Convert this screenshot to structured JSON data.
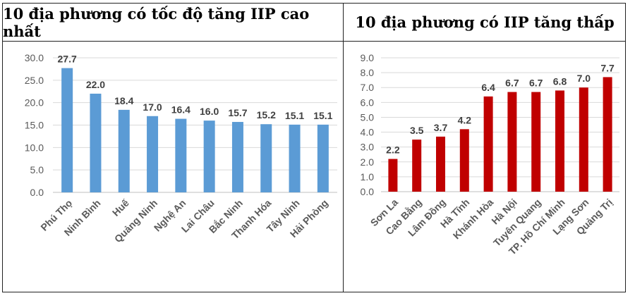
{
  "chart_data": [
    {
      "type": "bar",
      "title": "10 địa phương có tốc độ tăng IIP cao nhất",
      "categories": [
        "Phú Thọ",
        "Ninh Bình",
        "Huế",
        "Quảng Ninh",
        "Nghệ An",
        "Lai Châu",
        "Bắc Ninh",
        "Thanh Hóa",
        "Tây Ninh",
        "Hải Phòng"
      ],
      "values": [
        27.7,
        22.0,
        18.4,
        17.0,
        16.4,
        16.0,
        15.7,
        15.2,
        15.1,
        15.1
      ],
      "value_labels": [
        "27.7",
        "22.0",
        "18.4",
        "17.0",
        "16.4",
        "16.0",
        "15.7",
        "15.2",
        "15.1",
        "15.1"
      ],
      "ylim": [
        0,
        30
      ],
      "yticks": [
        "0.0",
        "5.0",
        "10.0",
        "15.0",
        "20.0",
        "25.0",
        "30.0"
      ],
      "ytick_values": [
        0,
        5,
        10,
        15,
        20,
        25,
        30
      ],
      "grid": true,
      "color": "#5B9BD5"
    },
    {
      "type": "bar",
      "title": "10 địa phương có IIP tăng thấp",
      "categories": [
        "Sơn La",
        "Cao Bằng",
        "Lâm Đồng",
        "Hà Tĩnh",
        "Khánh Hòa",
        "Hà Nội",
        "Tuyên Quang",
        "TP. Hồ Chí Minh",
        "Lạng Sơn",
        "Quảng Trị"
      ],
      "values": [
        2.2,
        3.5,
        3.7,
        4.2,
        6.4,
        6.7,
        6.7,
        6.8,
        7.0,
        7.7
      ],
      "value_labels": [
        "2.2",
        "3.5",
        "3.7",
        "4.2",
        "6.4",
        "6.7",
        "6.7",
        "6.8",
        "7.0",
        "7.7"
      ],
      "ylim": [
        0,
        9
      ],
      "yticks": [
        "0.0",
        "1.0",
        "2.0",
        "3.0",
        "4.0",
        "5.0",
        "6.0",
        "7.0",
        "8.0",
        "9.0"
      ],
      "ytick_values": [
        0,
        1,
        2,
        3,
        4,
        5,
        6,
        7,
        8,
        9
      ],
      "grid": true,
      "color": "#C00000"
    }
  ]
}
